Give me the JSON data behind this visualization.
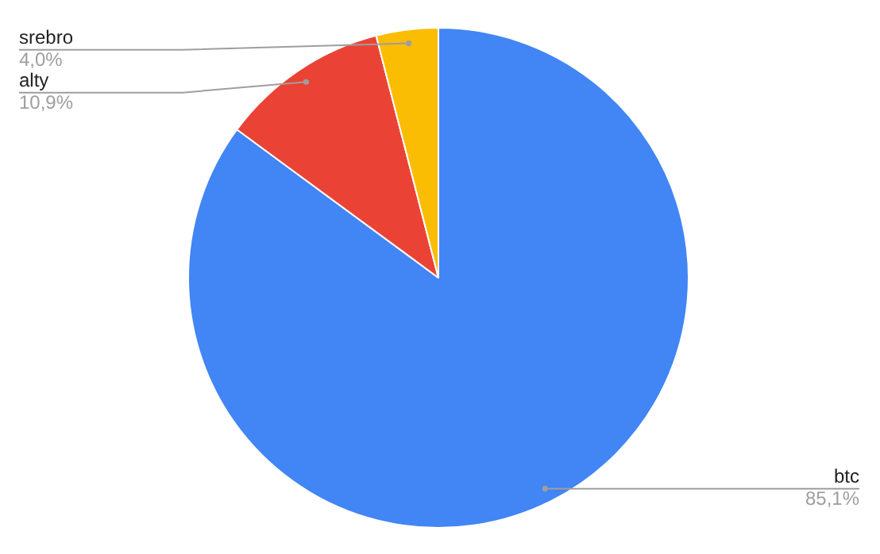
{
  "chart_data": {
    "type": "pie",
    "categories": [
      "btc",
      "alty",
      "srebro"
    ],
    "values": [
      85.1,
      10.9,
      4.0
    ],
    "colors": [
      "#4285f4",
      "#ea4335",
      "#fbbc04"
    ],
    "value_labels": [
      "85,1%",
      "10,9%",
      "4,0%"
    ],
    "legend": false
  }
}
